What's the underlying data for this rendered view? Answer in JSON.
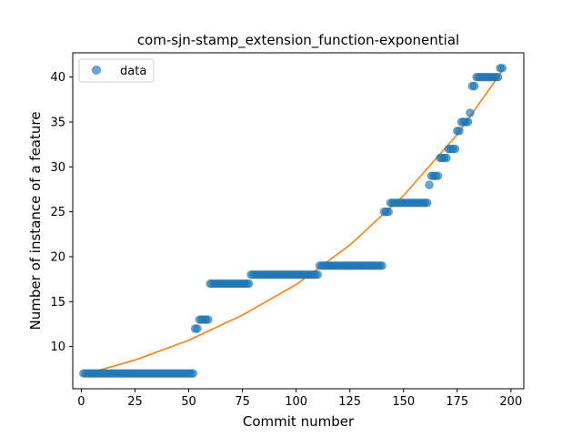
{
  "chart_data": {
    "type": "scatter",
    "title": "com-sjn-stamp_extension_function-exponential",
    "xlabel": "Commit number",
    "ylabel": "Number of instance of a feature",
    "xlim": [
      -4,
      206
    ],
    "ylim": [
      5.3,
      42.7
    ],
    "xticks": [
      0,
      25,
      50,
      75,
      100,
      125,
      150,
      175,
      200
    ],
    "yticks": [
      10,
      15,
      20,
      25,
      30,
      35,
      40
    ],
    "grid": false,
    "legend": {
      "position": "top-left",
      "entries": [
        "data"
      ]
    },
    "colors": {
      "data": "#1f77b4",
      "fit": "#ff7f0e"
    },
    "series": [
      {
        "name": "data",
        "kind": "scatter",
        "points": [
          [
            1,
            7
          ],
          [
            2,
            7
          ],
          [
            3,
            7
          ],
          [
            4,
            7
          ],
          [
            5,
            7
          ],
          [
            6,
            7
          ],
          [
            7,
            7
          ],
          [
            8,
            7
          ],
          [
            9,
            7
          ],
          [
            10,
            7
          ],
          [
            11,
            7
          ],
          [
            12,
            7
          ],
          [
            13,
            7
          ],
          [
            14,
            7
          ],
          [
            15,
            7
          ],
          [
            16,
            7
          ],
          [
            17,
            7
          ],
          [
            18,
            7
          ],
          [
            19,
            7
          ],
          [
            20,
            7
          ],
          [
            21,
            7
          ],
          [
            22,
            7
          ],
          [
            23,
            7
          ],
          [
            24,
            7
          ],
          [
            25,
            7
          ],
          [
            26,
            7
          ],
          [
            27,
            7
          ],
          [
            28,
            7
          ],
          [
            29,
            7
          ],
          [
            30,
            7
          ],
          [
            31,
            7
          ],
          [
            32,
            7
          ],
          [
            33,
            7
          ],
          [
            34,
            7
          ],
          [
            35,
            7
          ],
          [
            36,
            7
          ],
          [
            37,
            7
          ],
          [
            38,
            7
          ],
          [
            39,
            7
          ],
          [
            40,
            7
          ],
          [
            41,
            7
          ],
          [
            42,
            7
          ],
          [
            43,
            7
          ],
          [
            44,
            7
          ],
          [
            45,
            7
          ],
          [
            46,
            7
          ],
          [
            47,
            7
          ],
          [
            48,
            7
          ],
          [
            49,
            7
          ],
          [
            50,
            7
          ],
          [
            51,
            7
          ],
          [
            52,
            7
          ],
          [
            53,
            12
          ],
          [
            54,
            12
          ],
          [
            55,
            13
          ],
          [
            56,
            13
          ],
          [
            57,
            13
          ],
          [
            58,
            13
          ],
          [
            59,
            13
          ],
          [
            60,
            17
          ],
          [
            61,
            17
          ],
          [
            62,
            17
          ],
          [
            63,
            17
          ],
          [
            64,
            17
          ],
          [
            65,
            17
          ],
          [
            66,
            17
          ],
          [
            67,
            17
          ],
          [
            68,
            17
          ],
          [
            69,
            17
          ],
          [
            70,
            17
          ],
          [
            71,
            17
          ],
          [
            72,
            17
          ],
          [
            73,
            17
          ],
          [
            74,
            17
          ],
          [
            75,
            17
          ],
          [
            76,
            17
          ],
          [
            77,
            17
          ],
          [
            78,
            17
          ],
          [
            79,
            18
          ],
          [
            80,
            18
          ],
          [
            81,
            18
          ],
          [
            82,
            18
          ],
          [
            83,
            18
          ],
          [
            84,
            18
          ],
          [
            85,
            18
          ],
          [
            86,
            18
          ],
          [
            87,
            18
          ],
          [
            88,
            18
          ],
          [
            89,
            18
          ],
          [
            90,
            18
          ],
          [
            91,
            18
          ],
          [
            92,
            18
          ],
          [
            93,
            18
          ],
          [
            94,
            18
          ],
          [
            95,
            18
          ],
          [
            96,
            18
          ],
          [
            97,
            18
          ],
          [
            98,
            18
          ],
          [
            99,
            18
          ],
          [
            100,
            18
          ],
          [
            101,
            18
          ],
          [
            102,
            18
          ],
          [
            103,
            18
          ],
          [
            104,
            18
          ],
          [
            105,
            18
          ],
          [
            106,
            18
          ],
          [
            107,
            18
          ],
          [
            108,
            18
          ],
          [
            109,
            18
          ],
          [
            110,
            18
          ],
          [
            111,
            19
          ],
          [
            112,
            19
          ],
          [
            113,
            19
          ],
          [
            114,
            19
          ],
          [
            115,
            19
          ],
          [
            116,
            19
          ],
          [
            117,
            19
          ],
          [
            118,
            19
          ],
          [
            119,
            19
          ],
          [
            120,
            19
          ],
          [
            121,
            19
          ],
          [
            122,
            19
          ],
          [
            123,
            19
          ],
          [
            124,
            19
          ],
          [
            125,
            19
          ],
          [
            126,
            19
          ],
          [
            127,
            19
          ],
          [
            128,
            19
          ],
          [
            129,
            19
          ],
          [
            130,
            19
          ],
          [
            131,
            19
          ],
          [
            132,
            19
          ],
          [
            133,
            19
          ],
          [
            134,
            19
          ],
          [
            135,
            19
          ],
          [
            136,
            19
          ],
          [
            137,
            19
          ],
          [
            138,
            19
          ],
          [
            139,
            19
          ],
          [
            140,
            19
          ],
          [
            141,
            25
          ],
          [
            142,
            25
          ],
          [
            143,
            25
          ],
          [
            144,
            26
          ],
          [
            145,
            26
          ],
          [
            146,
            26
          ],
          [
            147,
            26
          ],
          [
            148,
            26
          ],
          [
            149,
            26
          ],
          [
            150,
            26
          ],
          [
            151,
            26
          ],
          [
            152,
            26
          ],
          [
            153,
            26
          ],
          [
            154,
            26
          ],
          [
            155,
            26
          ],
          [
            156,
            26
          ],
          [
            157,
            26
          ],
          [
            158,
            26
          ],
          [
            159,
            26
          ],
          [
            160,
            26
          ],
          [
            161,
            26
          ],
          [
            162,
            28
          ],
          [
            163,
            29
          ],
          [
            164,
            29
          ],
          [
            165,
            29
          ],
          [
            166,
            29
          ],
          [
            167,
            31
          ],
          [
            168,
            31
          ],
          [
            169,
            31
          ],
          [
            170,
            31
          ],
          [
            171,
            32
          ],
          [
            172,
            32
          ],
          [
            173,
            32
          ],
          [
            174,
            32
          ],
          [
            175,
            34
          ],
          [
            176,
            34
          ],
          [
            177,
            35
          ],
          [
            178,
            35
          ],
          [
            179,
            35
          ],
          [
            180,
            35
          ],
          [
            181,
            36
          ],
          [
            182,
            39
          ],
          [
            183,
            39
          ],
          [
            184,
            40
          ],
          [
            185,
            40
          ],
          [
            186,
            40
          ],
          [
            187,
            40
          ],
          [
            188,
            40
          ],
          [
            189,
            40
          ],
          [
            190,
            40
          ],
          [
            191,
            40
          ],
          [
            192,
            40
          ],
          [
            193,
            40
          ],
          [
            194,
            40
          ],
          [
            195,
            41
          ],
          [
            196,
            41
          ]
        ]
      },
      {
        "kind": "line",
        "model": "exponential",
        "points": [
          [
            0,
            6.8
          ],
          [
            25,
            8.5
          ],
          [
            50,
            10.7
          ],
          [
            75,
            13.5
          ],
          [
            100,
            16.9
          ],
          [
            125,
            21.3
          ],
          [
            150,
            26.8
          ],
          [
            175,
            33.6
          ],
          [
            196,
            40.7
          ]
        ]
      }
    ]
  }
}
